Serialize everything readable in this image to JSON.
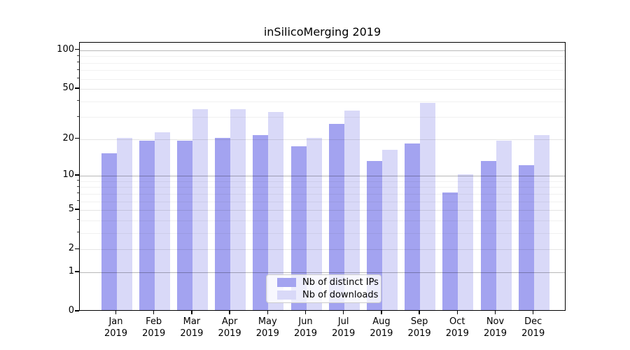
{
  "chart_data": {
    "type": "bar",
    "title": "inSilicoMerging 2019",
    "categories": [
      "Jan 2019",
      "Feb 2019",
      "Mar 2019",
      "Apr 2019",
      "May 2019",
      "Jun 2019",
      "Jul 2019",
      "Aug 2019",
      "Sep 2019",
      "Oct 2019",
      "Nov 2019",
      "Dec 2019"
    ],
    "series": [
      {
        "name": "Nb of distinct IPs",
        "color": "#a3a3f0",
        "values": [
          15,
          19,
          19,
          20,
          21,
          17,
          26,
          13,
          18,
          7,
          13,
          12
        ]
      },
      {
        "name": "Nb of downloads",
        "color": "#d9d9f8",
        "values": [
          20,
          22,
          34,
          34,
          32,
          20,
          33,
          16,
          38,
          10,
          19,
          21
        ]
      }
    ],
    "yscale": "log1p",
    "ylim": [
      0,
      113
    ],
    "yticks": [
      0,
      1,
      2,
      5,
      10,
      20,
      50,
      100
    ],
    "yticks_decade": [
      1,
      10,
      100
    ],
    "yticks_minor": [
      3,
      4,
      6,
      7,
      8,
      9,
      30,
      40,
      60,
      70,
      80,
      90
    ],
    "grid": true,
    "legend_position": "lower center"
  }
}
